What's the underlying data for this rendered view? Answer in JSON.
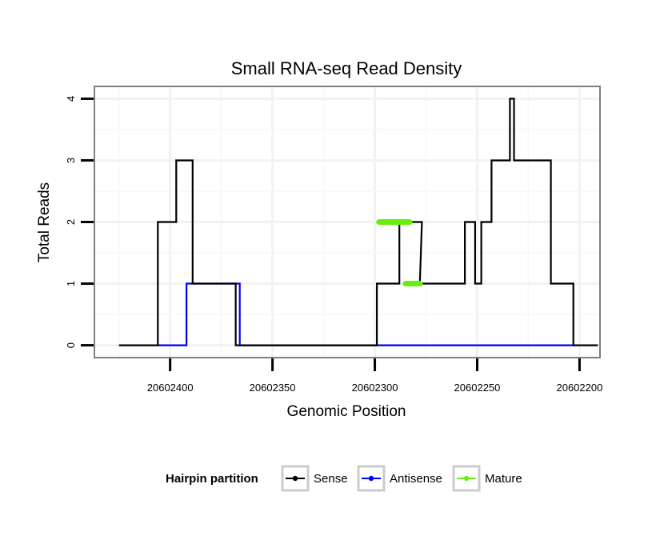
{
  "chart_data": {
    "type": "line",
    "title": "Small RNA-seq Read Density",
    "xlabel": "Genomic Position",
    "ylabel": "Total Reads",
    "x_reversed": true,
    "xlim": [
      20602437,
      20602190
    ],
    "ylim": [
      -0.2,
      4.2
    ],
    "x_ticks": [
      20602400,
      20602350,
      20602300,
      20602250,
      20602200
    ],
    "x_tick_labels": [
      "20602400",
      "20602350",
      "20602300",
      "20602250",
      "20602200"
    ],
    "y_ticks": [
      0,
      1,
      2,
      3,
      4
    ],
    "y_tick_labels": [
      "0",
      "1",
      "2",
      "3",
      "4"
    ],
    "grid": true,
    "legend": {
      "title": "Hairpin partition",
      "placement": "bottom",
      "entries": [
        "Sense",
        "Antisense",
        "Mature"
      ]
    },
    "series": [
      {
        "name": "Sense",
        "color": "#000000",
        "x": [
          20602425,
          20602406,
          20602406,
          20602397,
          20602397,
          20602389,
          20602389,
          20602379,
          20602379,
          20602374,
          20602374,
          20602368,
          20602368,
          20602299,
          20602299,
          20602288,
          20602288,
          20602277,
          20602277,
          20602278,
          20602278,
          20602256,
          20602256,
          20602251,
          20602251,
          20602248,
          20602248,
          20602243,
          20602243,
          20602234,
          20602234,
          20602232,
          20602232,
          20602229,
          20602229,
          20602219,
          20602219,
          20602214,
          20602214,
          20602212,
          20602212,
          20602203,
          20602203,
          20602191
        ],
        "y": [
          0,
          0,
          2,
          2,
          3,
          3,
          1,
          1,
          1,
          1,
          1,
          1,
          0,
          0,
          1,
          1,
          2,
          2,
          2,
          1,
          1,
          1,
          2,
          2,
          1,
          1,
          2,
          2,
          3,
          3,
          4,
          4,
          3,
          3,
          3,
          3,
          3,
          3,
          1,
          1,
          1,
          1,
          0,
          0
        ]
      },
      {
        "name": "Antisense",
        "color": "#0000ff",
        "x": [
          20602406,
          20602392,
          20602392,
          20602366,
          20602366,
          20602203
        ],
        "y": [
          0,
          0,
          1,
          1,
          0,
          0
        ]
      },
      {
        "name": "Mature",
        "color": "#66ee11",
        "segments": [
          {
            "x": [
              20602298,
              20602283
            ],
            "y": [
              2,
              2
            ]
          },
          {
            "x": [
              20602285,
              20602278
            ],
            "y": [
              1,
              1
            ]
          }
        ]
      }
    ]
  }
}
